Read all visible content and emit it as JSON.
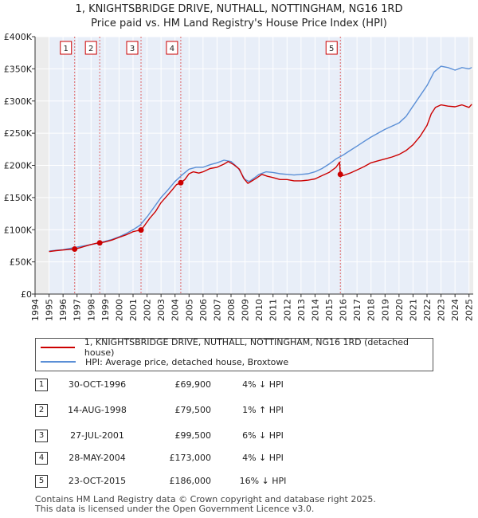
{
  "chart_data": {
    "type": "line",
    "title": "1, KNIGHTSBRIDGE DRIVE, NUTHALL, NOTTINGHAM, NG16 1RD",
    "subtitle": "Price paid vs. HM Land Registry's House Price Index (HPI)",
    "xlabel": "",
    "ylabel": "",
    "xlim": [
      1994,
      2025.3
    ],
    "ylim": [
      0,
      400000
    ],
    "x_ticks": [
      "1994",
      "1995",
      "1996",
      "1997",
      "1998",
      "1999",
      "2000",
      "2001",
      "2002",
      "2003",
      "2004",
      "2005",
      "2006",
      "2007",
      "2008",
      "2009",
      "2010",
      "2011",
      "2012",
      "2013",
      "2014",
      "2015",
      "2016",
      "2017",
      "2018",
      "2019",
      "2020",
      "2021",
      "2022",
      "2023",
      "2024",
      "2025"
    ],
    "y_ticks": [
      {
        "value": 0,
        "label": "£0"
      },
      {
        "value": 50000,
        "label": "£50K"
      },
      {
        "value": 100000,
        "label": "£100K"
      },
      {
        "value": 150000,
        "label": "£150K"
      },
      {
        "value": 200000,
        "label": "£200K"
      },
      {
        "value": 250000,
        "label": "£250K"
      },
      {
        "value": 300000,
        "label": "£300K"
      },
      {
        "value": 350000,
        "label": "£350K"
      },
      {
        "value": 400000,
        "label": "£400K"
      }
    ],
    "series": [
      {
        "name": "1, KNIGHTSBRIDGE DRIVE, NUTHALL, NOTTINGHAM, NG16 1RD (detached house)",
        "color": "#cc0000",
        "x": [
          1995.0,
          1995.5,
          1996.0,
          1996.5,
          1996.83,
          1997.2,
          1997.6,
          1998.0,
          1998.4,
          1998.62,
          1999.0,
          1999.5,
          2000.0,
          2000.5,
          2001.0,
          2001.3,
          2001.57,
          2001.8,
          2002.2,
          2002.6,
          2003.0,
          2003.4,
          2003.8,
          2004.1,
          2004.41,
          2004.7,
          2005.0,
          2005.3,
          2005.7,
          2006.0,
          2006.5,
          2007.0,
          2007.5,
          2007.8,
          2008.2,
          2008.6,
          2008.9,
          2009.2,
          2009.5,
          2009.8,
          2010.2,
          2010.6,
          2011.0,
          2011.5,
          2012.0,
          2012.5,
          2013.0,
          2013.5,
          2014.0,
          2014.5,
          2015.0,
          2015.5,
          2015.75,
          2015.81,
          2016.0,
          2016.5,
          2017.0,
          2017.5,
          2018.0,
          2018.5,
          2019.0,
          2019.5,
          2020.0,
          2020.5,
          2021.0,
          2021.5,
          2022.0,
          2022.3,
          2022.6,
          2023.0,
          2023.5,
          2024.0,
          2024.5,
          2025.0,
          2025.2
        ],
        "values": [
          66000,
          67500,
          68500,
          69500,
          69900,
          72000,
          74500,
          77000,
          79000,
          79500,
          81000,
          84000,
          88000,
          92000,
          97000,
          98500,
          99500,
          106000,
          118000,
          128000,
          142000,
          152000,
          162000,
          170000,
          173000,
          178000,
          187000,
          190000,
          188000,
          190000,
          195000,
          197000,
          202000,
          206000,
          201000,
          194000,
          180000,
          172000,
          176000,
          180000,
          186000,
          183000,
          181000,
          178000,
          178000,
          176000,
          176000,
          177000,
          179000,
          184000,
          189000,
          197000,
          205000,
          186000,
          184000,
          188000,
          193000,
          198000,
          204000,
          207000,
          210000,
          213000,
          217000,
          223000,
          232000,
          245000,
          262000,
          280000,
          290000,
          294000,
          292000,
          291000,
          294000,
          290000,
          295000
        ]
      },
      {
        "name": "HPI: Average price, detached house, Broxtowe",
        "color": "#5b8fd6",
        "x": [
          1995.0,
          1995.5,
          1996.0,
          1996.5,
          1997.0,
          1997.5,
          1998.0,
          1998.5,
          1999.0,
          1999.5,
          2000.0,
          2000.5,
          2001.0,
          2001.5,
          2002.0,
          2002.5,
          2003.0,
          2003.5,
          2004.0,
          2004.5,
          2005.0,
          2005.5,
          2006.0,
          2006.5,
          2007.0,
          2007.5,
          2008.0,
          2008.5,
          2009.0,
          2009.3,
          2009.7,
          2010.0,
          2010.5,
          2011.0,
          2011.5,
          2012.0,
          2012.5,
          2013.0,
          2013.5,
          2014.0,
          2014.5,
          2015.0,
          2015.5,
          2016.0,
          2016.5,
          2017.0,
          2017.5,
          2018.0,
          2018.5,
          2019.0,
          2019.5,
          2020.0,
          2020.5,
          2021.0,
          2021.5,
          2022.0,
          2022.5,
          2023.0,
          2023.5,
          2024.0,
          2024.5,
          2025.0,
          2025.2
        ],
        "values": [
          67000,
          68000,
          69000,
          71000,
          73000,
          75000,
          77000,
          79000,
          82000,
          85000,
          89000,
          94000,
          100000,
          107000,
          120000,
          135000,
          150000,
          162000,
          175000,
          185000,
          194000,
          197000,
          197000,
          201000,
          204000,
          208000,
          206000,
          196000,
          178000,
          175000,
          181000,
          186000,
          190000,
          189000,
          187000,
          186000,
          185000,
          186000,
          187000,
          190000,
          195000,
          202000,
          210000,
          216000,
          223000,
          230000,
          237000,
          244000,
          250000,
          256000,
          261000,
          266000,
          276000,
          292000,
          308000,
          324000,
          345000,
          354000,
          352000,
          348000,
          352000,
          350000,
          352000
        ]
      }
    ],
    "markers": [
      {
        "label": "1",
        "x": 1996.83,
        "value": 69900
      },
      {
        "label": "2",
        "x": 1998.62,
        "value": 79500
      },
      {
        "label": "3",
        "x": 2001.57,
        "value": 99500
      },
      {
        "label": "4",
        "x": 2004.41,
        "value": 173000
      },
      {
        "label": "5",
        "x": 2015.81,
        "value": 186000
      }
    ],
    "shaded_spans": [
      [
        1994,
        1995
      ],
      [
        2025,
        2025.3
      ]
    ],
    "legend_position": "bottom"
  },
  "legend": {
    "property_label": "1, KNIGHTSBRIDGE DRIVE, NUTHALL, NOTTINGHAM, NG16 1RD (detached house)",
    "hpi_label": "HPI: Average price, detached house, Broxtowe",
    "property_color": "#cc0000",
    "hpi_color": "#5b8fd6"
  },
  "transactions": [
    {
      "num": "1",
      "date": "30-OCT-1996",
      "price": "£69,900",
      "hpi": "4% ↓ HPI"
    },
    {
      "num": "2",
      "date": "14-AUG-1998",
      "price": "£79,500",
      "hpi": "1% ↑ HPI"
    },
    {
      "num": "3",
      "date": "27-JUL-2001",
      "price": "£99,500",
      "hpi": "6% ↓ HPI"
    },
    {
      "num": "4",
      "date": "28-MAY-2004",
      "price": "£173,000",
      "hpi": "4% ↓ HPI"
    },
    {
      "num": "5",
      "date": "23-OCT-2015",
      "price": "£186,000",
      "hpi": "16% ↓ HPI"
    }
  ],
  "footer": {
    "line1": "Contains HM Land Registry data © Crown copyright and database right 2025.",
    "line2": "This data is licensed under the Open Government Licence v3.0."
  }
}
